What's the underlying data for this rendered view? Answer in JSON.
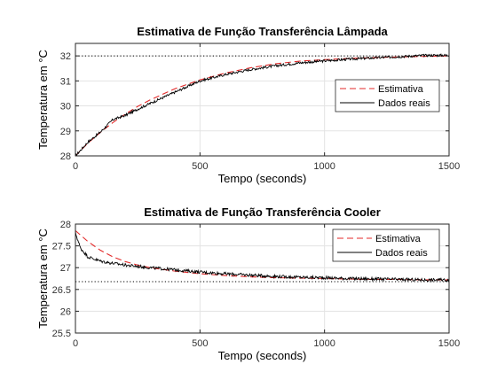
{
  "chart_data": [
    {
      "type": "line",
      "title": "Estimativa de Função Transferência Lâmpada",
      "xlabel": "Tempo (seconds)",
      "ylabel": "Temperatura em °C",
      "xlim": [
        0,
        1500
      ],
      "ylim": [
        28,
        32.5
      ],
      "xticks": [
        0,
        500,
        1000,
        1500
      ],
      "yticks": [
        28,
        29,
        30,
        31,
        32
      ],
      "grid": true,
      "legend_position": "right",
      "reference_line": {
        "y": 32,
        "style": "dotted",
        "color": "#000000"
      },
      "series": [
        {
          "name": "Estimativa",
          "style": "dashed",
          "color": "#e32a2a",
          "x": [
            0,
            50,
            100,
            150,
            200,
            250,
            300,
            400,
            500,
            600,
            700,
            800,
            900,
            1000,
            1100,
            1200,
            1300,
            1400,
            1500
          ],
          "y": [
            28.0,
            28.51,
            28.94,
            29.33,
            29.67,
            29.98,
            30.24,
            30.69,
            31.04,
            31.31,
            31.52,
            31.68,
            31.79,
            31.85,
            31.9,
            31.93,
            31.96,
            31.98,
            32.0
          ]
        },
        {
          "name": "Dados reais",
          "style": "solid",
          "color": "#000000",
          "noise": 0.05,
          "x": [
            0,
            50,
            100,
            150,
            200,
            250,
            300,
            400,
            500,
            600,
            700,
            800,
            900,
            1000,
            1100,
            1200,
            1300,
            1400,
            1500
          ],
          "y": [
            28.0,
            28.55,
            28.95,
            29.45,
            29.62,
            29.87,
            30.1,
            30.55,
            31.0,
            31.25,
            31.45,
            31.6,
            31.72,
            31.8,
            31.87,
            31.92,
            31.97,
            32.02,
            32.03
          ]
        }
      ]
    },
    {
      "type": "line",
      "title": "Estimativa de Função Transferência Cooler",
      "xlabel": "Tempo (seconds)",
      "ylabel": "Temperatura em °C",
      "xlim": [
        0,
        1500
      ],
      "ylim": [
        25.5,
        28
      ],
      "xticks": [
        0,
        500,
        1000,
        1500
      ],
      "yticks": [
        25.5,
        26,
        26.5,
        27,
        27.5,
        28
      ],
      "grid": true,
      "legend_position": "top-right",
      "reference_line": {
        "y": 26.68,
        "style": "dotted",
        "color": "#000000"
      },
      "series": [
        {
          "name": "Estimativa",
          "style": "dashed",
          "color": "#e32a2a",
          "x": [
            0,
            50,
            100,
            150,
            200,
            250,
            300,
            400,
            500,
            600,
            700,
            800,
            900,
            1000,
            1100,
            1200,
            1300,
            1400,
            1500
          ],
          "y": [
            27.85,
            27.6,
            27.4,
            27.25,
            27.14,
            27.06,
            27.0,
            26.92,
            26.86,
            26.82,
            26.79,
            26.77,
            26.76,
            26.75,
            26.74,
            26.73,
            26.73,
            26.72,
            26.72
          ]
        },
        {
          "name": "Dados reais",
          "style": "solid",
          "color": "#000000",
          "noise": 0.035,
          "x": [
            0,
            20,
            50,
            100,
            150,
            200,
            250,
            300,
            400,
            500,
            600,
            700,
            800,
            900,
            1000,
            1100,
            1200,
            1300,
            1400,
            1500
          ],
          "y": [
            27.8,
            27.45,
            27.25,
            27.15,
            27.1,
            27.06,
            27.03,
            27.0,
            26.95,
            26.9,
            26.86,
            26.83,
            26.8,
            26.78,
            26.77,
            26.75,
            26.74,
            26.73,
            26.72,
            26.72
          ]
        }
      ]
    }
  ]
}
